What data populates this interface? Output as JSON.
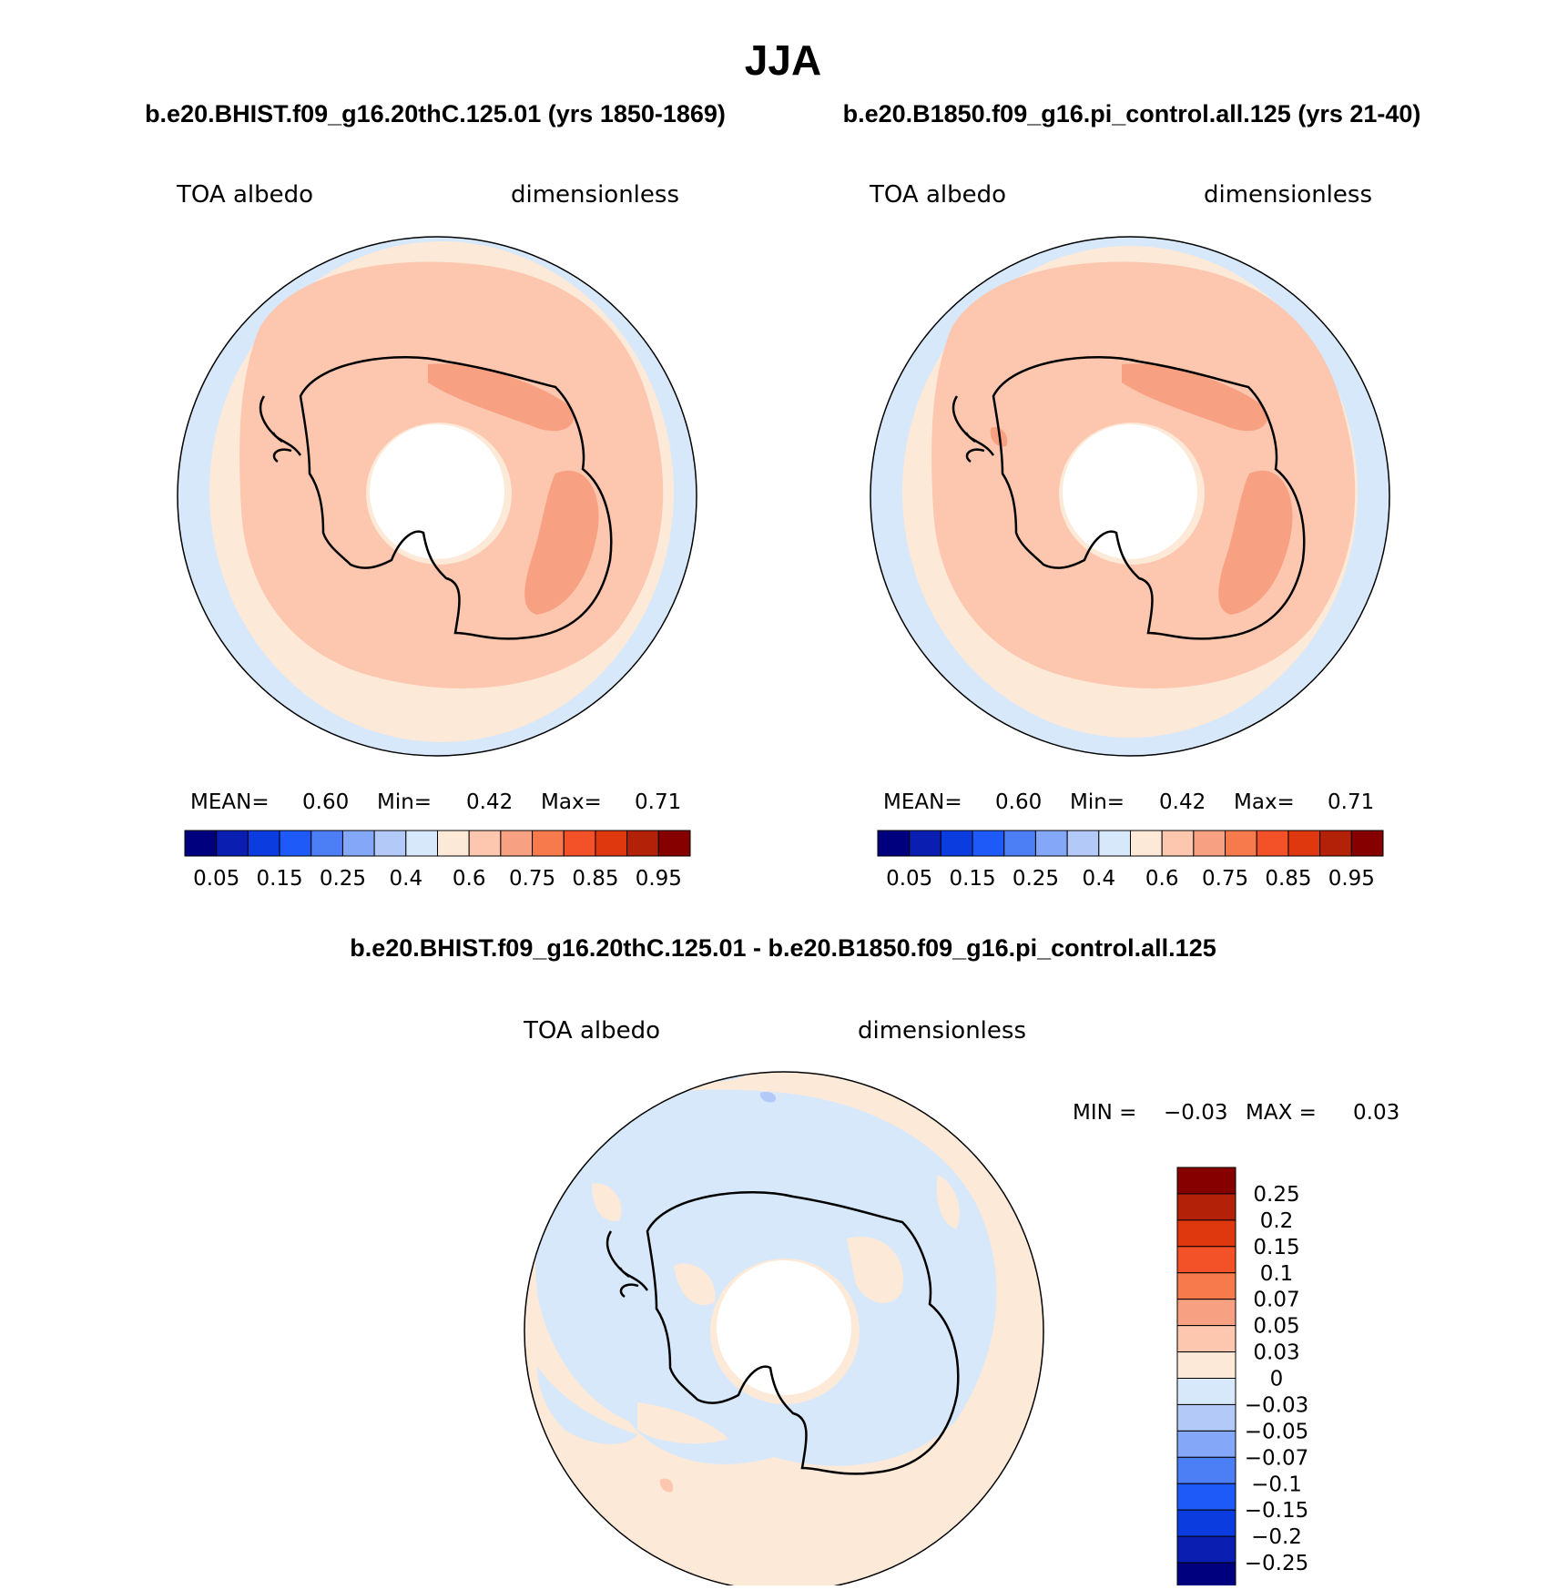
{
  "title": "JJA",
  "top_left": {
    "case": "b.e20.BHIST.f09_g16.20thC.125.01 (yrs 1850-1869)",
    "left_label": "TOA albedo",
    "right_label": "dimensionless",
    "stats": {
      "mean_label": "MEAN=",
      "mean": "0.60",
      "min_label": "Min=",
      "min": "0.42",
      "max_label": "Max=",
      "max": "0.71"
    }
  },
  "top_right": {
    "case": "b.e20.B1850.f09_g16.pi_control.all.125 (yrs 21-40)",
    "left_label": "TOA albedo",
    "right_label": "dimensionless",
    "stats": {
      "mean_label": "MEAN=",
      "mean": "0.60",
      "min_label": "Min=",
      "min": "0.42",
      "max_label": "Max=",
      "max": "0.71"
    }
  },
  "bottom": {
    "case": "b.e20.BHIST.f09_g16.20thC.125.01 - b.e20.B1850.f09_g16.pi_control.all.125",
    "left_label": "TOA albedo",
    "right_label": "dimensionless",
    "minmax": {
      "min_label": "MIN =",
      "min": "−0.03",
      "max_label": "MAX =",
      "max": "0.03"
    }
  },
  "colorbar_abs": {
    "colors": [
      "#00007f",
      "#0a1fb2",
      "#0b3ce0",
      "#1d5af7",
      "#4c7ef5",
      "#85a7f7",
      "#b3c9f8",
      "#d7e8fb",
      "#fde9d8",
      "#fcc7ae",
      "#f8a182",
      "#f67a4c",
      "#f35128",
      "#df380f",
      "#b32208",
      "#870000"
    ],
    "labels": [
      "0.05",
      "0.15",
      "0.25",
      "0.4",
      "0.6",
      "0.75",
      "0.85",
      "0.95"
    ]
  },
  "colorbar_diff": {
    "colors": [
      "#870000",
      "#b32208",
      "#df380f",
      "#f35128",
      "#f67a4c",
      "#f8a182",
      "#fcc7ae",
      "#fde9d8",
      "#d7e8fb",
      "#b3c9f8",
      "#85a7f7",
      "#4c7ef5",
      "#1d5af7",
      "#0b3ce0",
      "#0a1fb2",
      "#00007f"
    ],
    "labels": [
      "0.25",
      "0.2",
      "0.15",
      "0.1",
      "0.07",
      "0.05",
      "0.03",
      "0",
      "−0.03",
      "−0.05",
      "−0.07",
      "−0.1",
      "−0.15",
      "−0.2",
      "−0.25"
    ]
  },
  "field_colors": {
    "ocean_low": "#d7e8fb",
    "mid": "#fde9d8",
    "ring": "#fcc7ae",
    "high": "#f8a182",
    "missing": "#ffffff"
  }
}
